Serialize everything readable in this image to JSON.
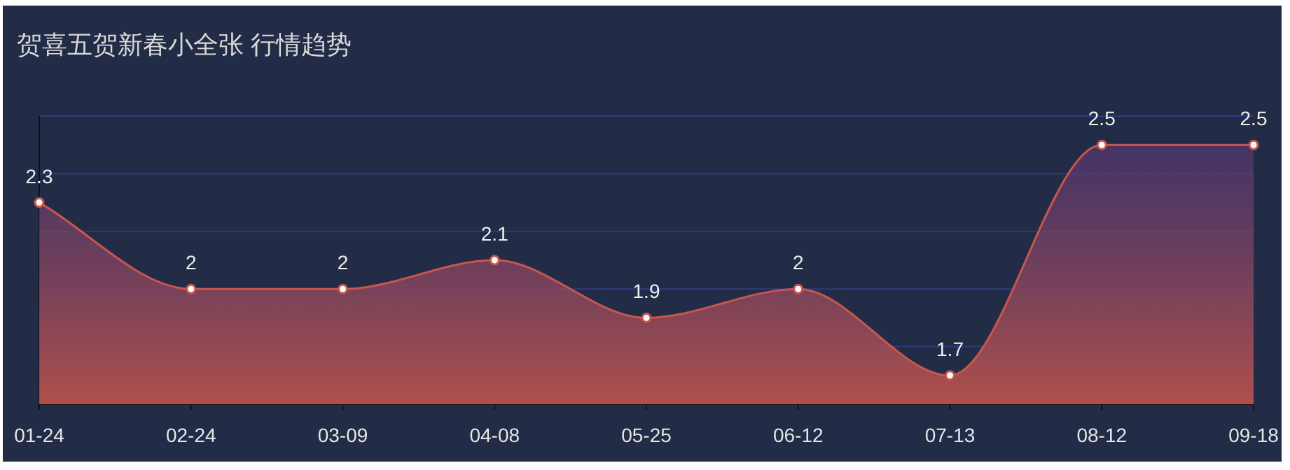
{
  "chart_data": {
    "type": "area",
    "title": "贺喜五贺新春小全张 行情趋势",
    "categories": [
      "01-24",
      "02-24",
      "03-09",
      "04-08",
      "05-25",
      "06-12",
      "07-13",
      "08-12",
      "09-18"
    ],
    "series": [
      {
        "color": "#c9564c",
        "values": [
          2.3,
          2,
          2,
          2.1,
          1.9,
          2,
          1.7,
          2.5,
          2.5
        ]
      }
    ],
    "ylim": [
      1.6,
      2.6
    ],
    "yticks": [
      {
        "value": 1.6,
        "label": null
      },
      {
        "value": 1.8,
        "label": null
      },
      {
        "value": 2.0,
        "label": null
      },
      {
        "value": 2.2,
        "label": null
      },
      {
        "value": 2.4,
        "label": null
      },
      {
        "value": 2.6,
        "label": null
      }
    ],
    "tick_labels": "x",
    "grid": "y",
    "data_labels": true,
    "marker": "circle"
  }
}
